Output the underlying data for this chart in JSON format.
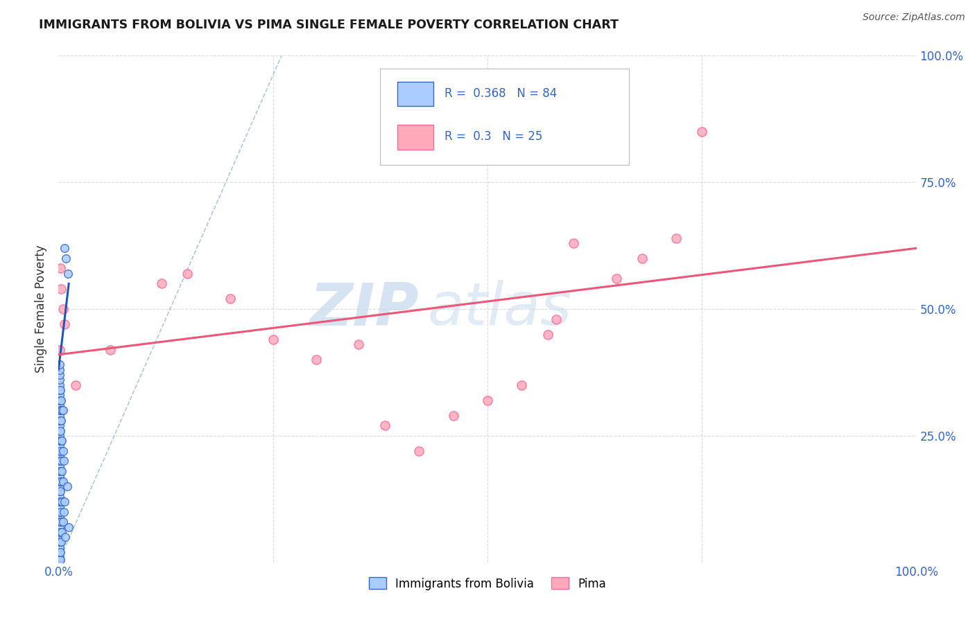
{
  "title": "IMMIGRANTS FROM BOLIVIA VS PIMA SINGLE FEMALE POVERTY CORRELATION CHART",
  "source": "Source: ZipAtlas.com",
  "ylabel": "Single Female Poverty",
  "xlim": [
    0,
    1.0
  ],
  "ylim": [
    0,
    1.0
  ],
  "R_blue": 0.368,
  "N_blue": 84,
  "R_pink": 0.3,
  "N_pink": 25,
  "blue_scatter": [
    [
      0.001,
      0.005
    ],
    [
      0.001,
      0.01
    ],
    [
      0.001,
      0.02
    ],
    [
      0.001,
      0.03
    ],
    [
      0.001,
      0.04
    ],
    [
      0.001,
      0.05
    ],
    [
      0.001,
      0.06
    ],
    [
      0.001,
      0.07
    ],
    [
      0.001,
      0.08
    ],
    [
      0.001,
      0.09
    ],
    [
      0.001,
      0.1
    ],
    [
      0.001,
      0.11
    ],
    [
      0.001,
      0.12
    ],
    [
      0.001,
      0.13
    ],
    [
      0.001,
      0.14
    ],
    [
      0.001,
      0.15
    ],
    [
      0.001,
      0.16
    ],
    [
      0.001,
      0.17
    ],
    [
      0.001,
      0.18
    ],
    [
      0.001,
      0.19
    ],
    [
      0.001,
      0.2
    ],
    [
      0.001,
      0.21
    ],
    [
      0.001,
      0.22
    ],
    [
      0.001,
      0.23
    ],
    [
      0.001,
      0.24
    ],
    [
      0.001,
      0.25
    ],
    [
      0.001,
      0.26
    ],
    [
      0.001,
      0.27
    ],
    [
      0.001,
      0.28
    ],
    [
      0.001,
      0.29
    ],
    [
      0.001,
      0.3
    ],
    [
      0.001,
      0.31
    ],
    [
      0.001,
      0.32
    ],
    [
      0.001,
      0.33
    ],
    [
      0.001,
      0.34
    ],
    [
      0.001,
      0.35
    ],
    [
      0.001,
      0.36
    ],
    [
      0.001,
      0.37
    ],
    [
      0.001,
      0.38
    ],
    [
      0.001,
      0.39
    ],
    [
      0.002,
      0.005
    ],
    [
      0.002,
      0.02
    ],
    [
      0.002,
      0.04
    ],
    [
      0.002,
      0.06
    ],
    [
      0.002,
      0.08
    ],
    [
      0.002,
      0.1
    ],
    [
      0.002,
      0.12
    ],
    [
      0.002,
      0.14
    ],
    [
      0.002,
      0.16
    ],
    [
      0.002,
      0.18
    ],
    [
      0.002,
      0.2
    ],
    [
      0.002,
      0.22
    ],
    [
      0.002,
      0.24
    ],
    [
      0.002,
      0.26
    ],
    [
      0.002,
      0.28
    ],
    [
      0.002,
      0.3
    ],
    [
      0.002,
      0.32
    ],
    [
      0.002,
      0.34
    ],
    [
      0.003,
      0.04
    ],
    [
      0.003,
      0.08
    ],
    [
      0.003,
      0.12
    ],
    [
      0.003,
      0.16
    ],
    [
      0.003,
      0.2
    ],
    [
      0.003,
      0.24
    ],
    [
      0.003,
      0.28
    ],
    [
      0.003,
      0.32
    ],
    [
      0.004,
      0.06
    ],
    [
      0.004,
      0.12
    ],
    [
      0.004,
      0.18
    ],
    [
      0.004,
      0.24
    ],
    [
      0.004,
      0.3
    ],
    [
      0.005,
      0.08
    ],
    [
      0.005,
      0.16
    ],
    [
      0.005,
      0.22
    ],
    [
      0.005,
      0.3
    ],
    [
      0.006,
      0.1
    ],
    [
      0.006,
      0.2
    ],
    [
      0.007,
      0.12
    ],
    [
      0.007,
      0.62
    ],
    [
      0.008,
      0.05
    ],
    [
      0.009,
      0.6
    ],
    [
      0.01,
      0.15
    ],
    [
      0.011,
      0.57
    ],
    [
      0.012,
      0.07
    ]
  ],
  "pink_scatter": [
    [
      0.001,
      0.42
    ],
    [
      0.002,
      0.58
    ],
    [
      0.003,
      0.54
    ],
    [
      0.005,
      0.5
    ],
    [
      0.007,
      0.47
    ],
    [
      0.02,
      0.35
    ],
    [
      0.06,
      0.42
    ],
    [
      0.12,
      0.55
    ],
    [
      0.15,
      0.57
    ],
    [
      0.2,
      0.52
    ],
    [
      0.25,
      0.44
    ],
    [
      0.3,
      0.4
    ],
    [
      0.35,
      0.43
    ],
    [
      0.38,
      0.27
    ],
    [
      0.42,
      0.22
    ],
    [
      0.46,
      0.29
    ],
    [
      0.5,
      0.32
    ],
    [
      0.54,
      0.35
    ],
    [
      0.57,
      0.45
    ],
    [
      0.58,
      0.48
    ],
    [
      0.6,
      0.63
    ],
    [
      0.65,
      0.56
    ],
    [
      0.68,
      0.6
    ],
    [
      0.72,
      0.64
    ],
    [
      0.75,
      0.85
    ]
  ],
  "blue_line_x": [
    0.0,
    0.012
  ],
  "blue_line_y": [
    0.38,
    0.55
  ],
  "pink_line_x": [
    0.0,
    1.0
  ],
  "pink_line_y": [
    0.41,
    0.62
  ],
  "blue_dot_color": "#aaccff",
  "blue_dot_edge": "#3366cc",
  "pink_dot_color": "#ffaabb",
  "pink_dot_edge": "#ff6699",
  "blue_line_color": "#2255bb",
  "pink_line_color": "#ee5577",
  "blue_dash_color": "#99bbdd",
  "watermark_color": "#c5d8ee",
  "bg_color": "#ffffff",
  "grid_color": "#cccccc"
}
